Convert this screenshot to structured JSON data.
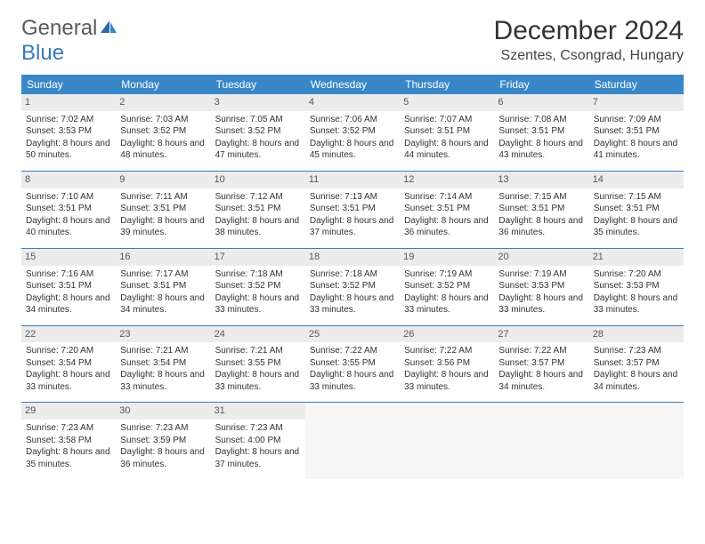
{
  "brand": {
    "part1": "General",
    "part2": "Blue"
  },
  "title": "December 2024",
  "location": "Szentes, Csongrad, Hungary",
  "colors": {
    "header_bg": "#3a87c8",
    "accent": "#3a7ab8",
    "daybar": "#ececec",
    "text": "#333333"
  },
  "typography": {
    "title_size": 30,
    "location_size": 16,
    "cell_size": 10
  },
  "weekdays": [
    "Sunday",
    "Monday",
    "Tuesday",
    "Wednesday",
    "Thursday",
    "Friday",
    "Saturday"
  ],
  "weeks": [
    [
      {
        "day": "1",
        "sunrise": "Sunrise: 7:02 AM",
        "sunset": "Sunset: 3:53 PM",
        "daylight": "Daylight: 8 hours and 50 minutes."
      },
      {
        "day": "2",
        "sunrise": "Sunrise: 7:03 AM",
        "sunset": "Sunset: 3:52 PM",
        "daylight": "Daylight: 8 hours and 48 minutes."
      },
      {
        "day": "3",
        "sunrise": "Sunrise: 7:05 AM",
        "sunset": "Sunset: 3:52 PM",
        "daylight": "Daylight: 8 hours and 47 minutes."
      },
      {
        "day": "4",
        "sunrise": "Sunrise: 7:06 AM",
        "sunset": "Sunset: 3:52 PM",
        "daylight": "Daylight: 8 hours and 45 minutes."
      },
      {
        "day": "5",
        "sunrise": "Sunrise: 7:07 AM",
        "sunset": "Sunset: 3:51 PM",
        "daylight": "Daylight: 8 hours and 44 minutes."
      },
      {
        "day": "6",
        "sunrise": "Sunrise: 7:08 AM",
        "sunset": "Sunset: 3:51 PM",
        "daylight": "Daylight: 8 hours and 43 minutes."
      },
      {
        "day": "7",
        "sunrise": "Sunrise: 7:09 AM",
        "sunset": "Sunset: 3:51 PM",
        "daylight": "Daylight: 8 hours and 41 minutes."
      }
    ],
    [
      {
        "day": "8",
        "sunrise": "Sunrise: 7:10 AM",
        "sunset": "Sunset: 3:51 PM",
        "daylight": "Daylight: 8 hours and 40 minutes."
      },
      {
        "day": "9",
        "sunrise": "Sunrise: 7:11 AM",
        "sunset": "Sunset: 3:51 PM",
        "daylight": "Daylight: 8 hours and 39 minutes."
      },
      {
        "day": "10",
        "sunrise": "Sunrise: 7:12 AM",
        "sunset": "Sunset: 3:51 PM",
        "daylight": "Daylight: 8 hours and 38 minutes."
      },
      {
        "day": "11",
        "sunrise": "Sunrise: 7:13 AM",
        "sunset": "Sunset: 3:51 PM",
        "daylight": "Daylight: 8 hours and 37 minutes."
      },
      {
        "day": "12",
        "sunrise": "Sunrise: 7:14 AM",
        "sunset": "Sunset: 3:51 PM",
        "daylight": "Daylight: 8 hours and 36 minutes."
      },
      {
        "day": "13",
        "sunrise": "Sunrise: 7:15 AM",
        "sunset": "Sunset: 3:51 PM",
        "daylight": "Daylight: 8 hours and 36 minutes."
      },
      {
        "day": "14",
        "sunrise": "Sunrise: 7:15 AM",
        "sunset": "Sunset: 3:51 PM",
        "daylight": "Daylight: 8 hours and 35 minutes."
      }
    ],
    [
      {
        "day": "15",
        "sunrise": "Sunrise: 7:16 AM",
        "sunset": "Sunset: 3:51 PM",
        "daylight": "Daylight: 8 hours and 34 minutes."
      },
      {
        "day": "16",
        "sunrise": "Sunrise: 7:17 AM",
        "sunset": "Sunset: 3:51 PM",
        "daylight": "Daylight: 8 hours and 34 minutes."
      },
      {
        "day": "17",
        "sunrise": "Sunrise: 7:18 AM",
        "sunset": "Sunset: 3:52 PM",
        "daylight": "Daylight: 8 hours and 33 minutes."
      },
      {
        "day": "18",
        "sunrise": "Sunrise: 7:18 AM",
        "sunset": "Sunset: 3:52 PM",
        "daylight": "Daylight: 8 hours and 33 minutes."
      },
      {
        "day": "19",
        "sunrise": "Sunrise: 7:19 AM",
        "sunset": "Sunset: 3:52 PM",
        "daylight": "Daylight: 8 hours and 33 minutes."
      },
      {
        "day": "20",
        "sunrise": "Sunrise: 7:19 AM",
        "sunset": "Sunset: 3:53 PM",
        "daylight": "Daylight: 8 hours and 33 minutes."
      },
      {
        "day": "21",
        "sunrise": "Sunrise: 7:20 AM",
        "sunset": "Sunset: 3:53 PM",
        "daylight": "Daylight: 8 hours and 33 minutes."
      }
    ],
    [
      {
        "day": "22",
        "sunrise": "Sunrise: 7:20 AM",
        "sunset": "Sunset: 3:54 PM",
        "daylight": "Daylight: 8 hours and 33 minutes."
      },
      {
        "day": "23",
        "sunrise": "Sunrise: 7:21 AM",
        "sunset": "Sunset: 3:54 PM",
        "daylight": "Daylight: 8 hours and 33 minutes."
      },
      {
        "day": "24",
        "sunrise": "Sunrise: 7:21 AM",
        "sunset": "Sunset: 3:55 PM",
        "daylight": "Daylight: 8 hours and 33 minutes."
      },
      {
        "day": "25",
        "sunrise": "Sunrise: 7:22 AM",
        "sunset": "Sunset: 3:55 PM",
        "daylight": "Daylight: 8 hours and 33 minutes."
      },
      {
        "day": "26",
        "sunrise": "Sunrise: 7:22 AM",
        "sunset": "Sunset: 3:56 PM",
        "daylight": "Daylight: 8 hours and 33 minutes."
      },
      {
        "day": "27",
        "sunrise": "Sunrise: 7:22 AM",
        "sunset": "Sunset: 3:57 PM",
        "daylight": "Daylight: 8 hours and 34 minutes."
      },
      {
        "day": "28",
        "sunrise": "Sunrise: 7:23 AM",
        "sunset": "Sunset: 3:57 PM",
        "daylight": "Daylight: 8 hours and 34 minutes."
      }
    ],
    [
      {
        "day": "29",
        "sunrise": "Sunrise: 7:23 AM",
        "sunset": "Sunset: 3:58 PM",
        "daylight": "Daylight: 8 hours and 35 minutes."
      },
      {
        "day": "30",
        "sunrise": "Sunrise: 7:23 AM",
        "sunset": "Sunset: 3:59 PM",
        "daylight": "Daylight: 8 hours and 36 minutes."
      },
      {
        "day": "31",
        "sunrise": "Sunrise: 7:23 AM",
        "sunset": "Sunset: 4:00 PM",
        "daylight": "Daylight: 8 hours and 37 minutes."
      },
      {
        "empty": true
      },
      {
        "empty": true
      },
      {
        "empty": true
      },
      {
        "empty": true
      }
    ]
  ]
}
